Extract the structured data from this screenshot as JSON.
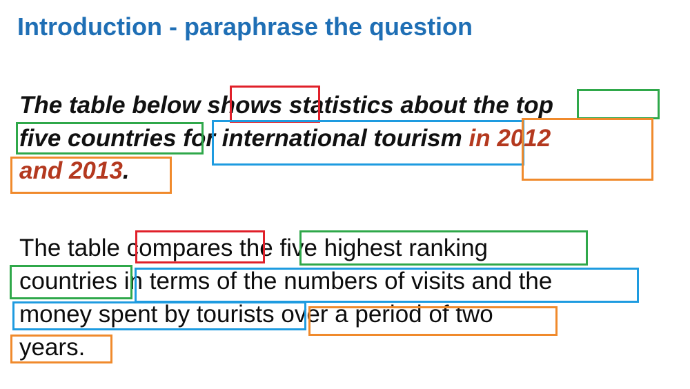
{
  "heading": "Introduction - paraphrase the question",
  "question": {
    "line1": [
      "The table below ",
      "shows",
      " statistics about the ",
      "top"
    ],
    "line2": [
      "five countries",
      " for international tourism ",
      "in 2012"
    ],
    "line3": [
      "and 2013",
      "."
    ]
  },
  "answer": {
    "line1": [
      "The table ",
      "compares",
      " the ",
      "five highest ranking"
    ],
    "line2": [
      "countries",
      " in terms of the numbers of visits and the"
    ],
    "line3": [
      "money spent by tourists",
      " over a period of two"
    ],
    "line4": [
      "years."
    ]
  },
  "colors": {
    "heading": "#1f6fb5",
    "date_text": "#b4391f",
    "verb_box": "#e0202a",
    "subject_box": "#2fa84a",
    "topic_box": "#1e9be0",
    "time_box": "#f08a2c"
  }
}
